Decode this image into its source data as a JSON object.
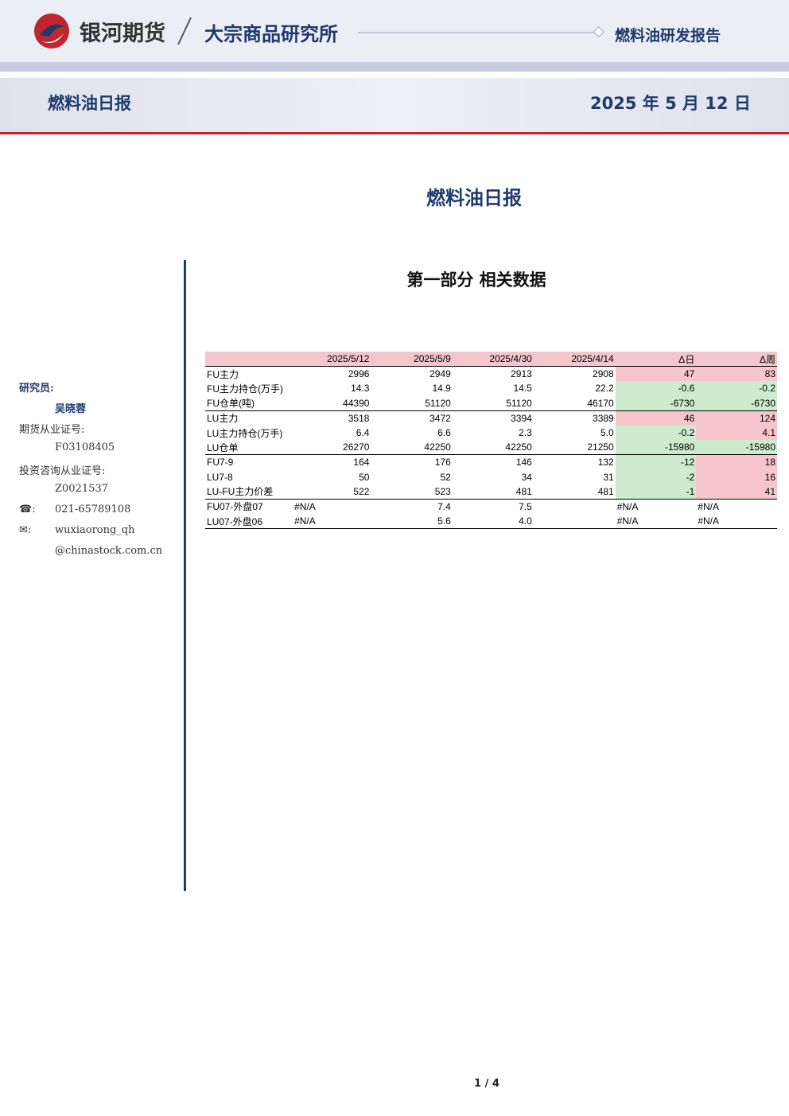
{
  "header": {
    "company": "银河期货",
    "division": "大宗商品研究所",
    "report_type": "燃料油研发报告"
  },
  "banner": {
    "title": "燃料油日报",
    "date": "2025 年 5 月 12 日"
  },
  "title": "燃料油日报",
  "section": "第一部分 相关数据",
  "sidebar": {
    "researcher_label": "研究员:",
    "researcher": "吴晓蓉",
    "license_label": "期货从业证号:",
    "license": "F03108405",
    "consult_label": "投资咨询从业证号:",
    "consult": "Z0021537",
    "phone_label": "☎:",
    "phone": "021-65789108",
    "email_label": "✉:",
    "email": [
      "wuxiaorong_qh",
      "@chinastock.com.cn"
    ]
  },
  "table": {
    "columns": [
      "2025/5/12",
      "2025/5/9",
      "2025/4/30",
      "2025/4/14",
      "Δ日",
      "Δ周"
    ],
    "rows": [
      {
        "label": "FU主力",
        "cells": [
          "2996",
          "2949",
          "2913",
          "2908",
          "47",
          "83"
        ]
      },
      {
        "label": "FU主力持仓(万手)",
        "cells": [
          "14.3",
          "14.9",
          "14.5",
          "22.2",
          "-0.6",
          "-0.2"
        ]
      },
      {
        "label": "FU仓单(吨)",
        "cells": [
          "44390",
          "51120",
          "51120",
          "46170",
          "-6730",
          "-6730"
        ]
      },
      {
        "label": "LU主力",
        "cells": [
          "3518",
          "3472",
          "3394",
          "3389",
          "46",
          "124"
        ]
      },
      {
        "label": "LU主力持仓(万手)",
        "cells": [
          "6.4",
          "6.6",
          "2.3",
          "5.0",
          "-0.2",
          "4.1"
        ]
      },
      {
        "label": "LU仓单",
        "cells": [
          "26270",
          "42250",
          "42250",
          "21250",
          "-15980",
          "-15980"
        ]
      },
      {
        "label": "FU7-9",
        "cells": [
          "164",
          "176",
          "146",
          "132",
          "-12",
          "18"
        ]
      },
      {
        "label": "LU7-8",
        "cells": [
          "50",
          "52",
          "34",
          "31",
          "-2",
          "16"
        ]
      },
      {
        "label": "LU-FU主力价差",
        "cells": [
          "522",
          "523",
          "481",
          "481",
          "-1",
          "41"
        ]
      },
      {
        "label": "FU07-外盘07",
        "cells": [
          "#N/A",
          "7.4",
          "7.5",
          null,
          "#N/A",
          "#N/A"
        ]
      },
      {
        "label": "LU07-外盘06",
        "cells": [
          "#N/A",
          "5.6",
          "4.0",
          null,
          "#N/A",
          "#N/A"
        ]
      }
    ]
  },
  "footer": {
    "page": "1 / 4"
  }
}
